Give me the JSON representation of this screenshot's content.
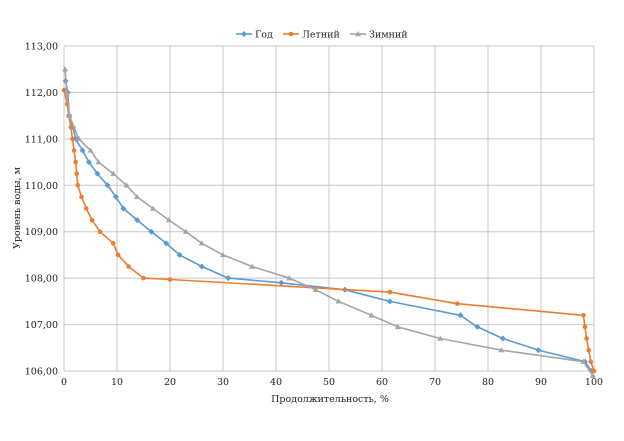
{
  "chart_data": {
    "type": "line",
    "title": "",
    "xlabel": "Продолжительность, %",
    "ylabel": "Уровень воды, м",
    "xlim": [
      0,
      100
    ],
    "ylim": [
      106,
      113
    ],
    "x_ticks": [
      0,
      10,
      20,
      30,
      40,
      50,
      60,
      70,
      80,
      90,
      100
    ],
    "y_ticks": [
      {
        "value": 106,
        "label": "106,00"
      },
      {
        "value": 107,
        "label": "107,00"
      },
      {
        "value": 108,
        "label": "108,00"
      },
      {
        "value": 109,
        "label": "109,00"
      },
      {
        "value": 110,
        "label": "110,00"
      },
      {
        "value": 111,
        "label": "111,00"
      },
      {
        "value": 112,
        "label": "112,00"
      },
      {
        "value": 113,
        "label": "113,00"
      }
    ],
    "grid": true,
    "legend_position": "top-center",
    "series": [
      {
        "name": "Год",
        "color": "#5b9bd5",
        "marker": "diamond",
        "points": [
          [
            0.3,
            112.25
          ],
          [
            0.7,
            112.0
          ],
          [
            1.0,
            111.5
          ],
          [
            1.7,
            111.25
          ],
          [
            2.2,
            111.0
          ],
          [
            3.5,
            110.75
          ],
          [
            4.7,
            110.5
          ],
          [
            6.3,
            110.25
          ],
          [
            8.2,
            110.0
          ],
          [
            9.8,
            109.75
          ],
          [
            11.2,
            109.5
          ],
          [
            13.8,
            109.25
          ],
          [
            16.5,
            109.0
          ],
          [
            19.3,
            108.75
          ],
          [
            21.8,
            108.5
          ],
          [
            26.0,
            108.25
          ],
          [
            31.0,
            108.0
          ],
          [
            41.0,
            107.9
          ],
          [
            53.0,
            107.75
          ],
          [
            61.5,
            107.5
          ],
          [
            74.8,
            107.2
          ],
          [
            78.0,
            106.95
          ],
          [
            82.8,
            106.7
          ],
          [
            89.5,
            106.45
          ],
          [
            98.3,
            106.2
          ],
          [
            99.5,
            106.0
          ]
        ]
      },
      {
        "name": "Летний",
        "color": "#ed7d31",
        "marker": "circle",
        "points": [
          [
            0.0,
            112.05
          ],
          [
            0.6,
            111.75
          ],
          [
            0.9,
            111.5
          ],
          [
            1.3,
            111.25
          ],
          [
            1.6,
            111.0
          ],
          [
            1.9,
            110.75
          ],
          [
            2.2,
            110.5
          ],
          [
            2.4,
            110.25
          ],
          [
            2.6,
            110.0
          ],
          [
            3.3,
            109.75
          ],
          [
            4.2,
            109.5
          ],
          [
            5.3,
            109.25
          ],
          [
            6.8,
            109.0
          ],
          [
            9.3,
            108.75
          ],
          [
            10.2,
            108.5
          ],
          [
            12.2,
            108.25
          ],
          [
            15.0,
            108.0
          ],
          [
            20.0,
            107.97
          ],
          [
            61.5,
            107.7
          ],
          [
            74.2,
            107.45
          ],
          [
            98.0,
            107.2
          ],
          [
            98.3,
            106.95
          ],
          [
            98.6,
            106.7
          ],
          [
            99.0,
            106.45
          ],
          [
            99.4,
            106.2
          ],
          [
            100.0,
            106.0
          ]
        ]
      },
      {
        "name": "Зимний",
        "color": "#a5a5a5",
        "marker": "triangle",
        "points": [
          [
            0.2,
            112.5
          ],
          [
            0.5,
            112.0
          ],
          [
            1.0,
            111.5
          ],
          [
            2.8,
            111.0
          ],
          [
            5.0,
            110.75
          ],
          [
            6.5,
            110.5
          ],
          [
            9.3,
            110.25
          ],
          [
            11.8,
            110.0
          ],
          [
            13.8,
            109.75
          ],
          [
            16.8,
            109.5
          ],
          [
            19.8,
            109.25
          ],
          [
            23.0,
            109.0
          ],
          [
            26.0,
            108.75
          ],
          [
            30.0,
            108.5
          ],
          [
            35.5,
            108.25
          ],
          [
            42.5,
            108.0
          ],
          [
            47.5,
            107.75
          ],
          [
            51.8,
            107.5
          ],
          [
            58.0,
            107.2
          ],
          [
            63.0,
            106.95
          ],
          [
            71.0,
            106.7
          ],
          [
            82.5,
            106.45
          ],
          [
            98.0,
            106.2
          ],
          [
            99.8,
            105.9
          ]
        ]
      }
    ]
  }
}
